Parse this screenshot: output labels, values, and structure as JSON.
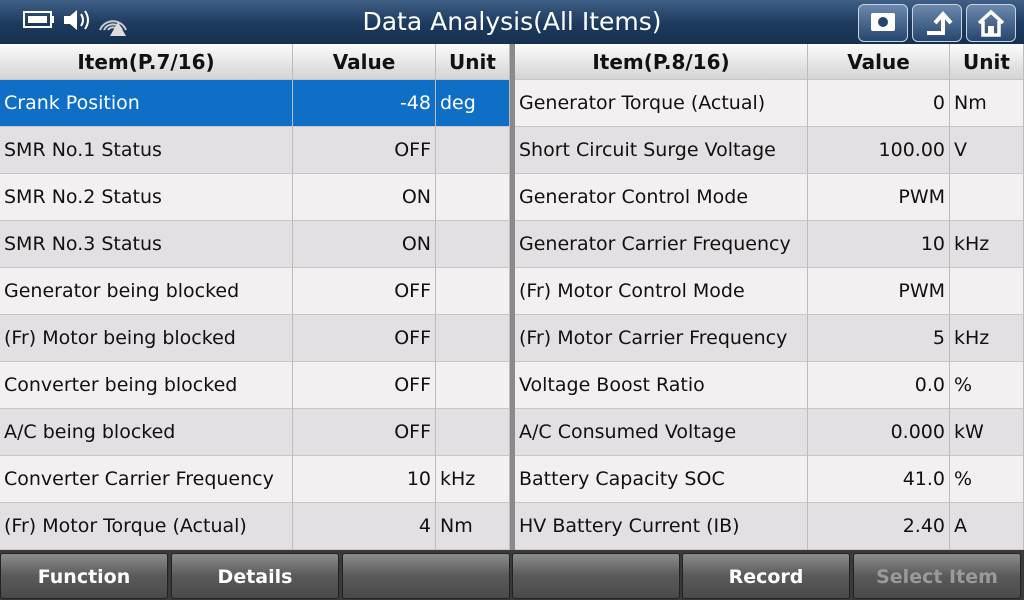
{
  "header": {
    "title": "Data Analysis(All Items)"
  },
  "tables": [
    {
      "headers": [
        "Item(P.7/16)",
        "Value",
        "Unit"
      ],
      "rows": [
        {
          "item": "Crank Position",
          "value": "-48",
          "unit": "deg"
        },
        {
          "item": "SMR No.1 Status",
          "value": "OFF"
        },
        {
          "item": "SMR No.2 Status",
          "value": "ON"
        },
        {
          "item": "SMR No.3 Status",
          "value": "ON"
        },
        {
          "item": "Generator being blocked",
          "value": "OFF"
        },
        {
          "item": "(Fr) Motor being blocked",
          "value": "OFF"
        },
        {
          "item": "Converter being blocked",
          "value": "OFF"
        },
        {
          "item": "A/C being blocked",
          "value": "OFF"
        },
        {
          "item": "Converter Carrier Frequency",
          "value": "10",
          "unit": "kHz"
        },
        {
          "item": "(Fr) Motor Torque (Actual)",
          "value": "4",
          "unit": "Nm"
        }
      ]
    },
    {
      "headers": [
        "Item(P.8/16)",
        "Value",
        "Unit"
      ],
      "rows": [
        {
          "item": "Generator Torque (Actual)",
          "value": "0",
          "unit": "Nm"
        },
        {
          "item": "Short Circuit Surge Voltage",
          "value": "100.00",
          "unit": "V"
        },
        {
          "item": "Generator Control Mode",
          "value": "PWM"
        },
        {
          "item": "Generator Carrier Frequency",
          "value": "10",
          "unit": "kHz"
        },
        {
          "item": "(Fr) Motor Control Mode",
          "value": "PWM"
        },
        {
          "item": "(Fr) Motor Carrier Frequency",
          "value": "5",
          "unit": "kHz"
        },
        {
          "item": "Voltage Boost Ratio",
          "value": "0.0",
          "unit": "%"
        },
        {
          "item": "A/C Consumed Voltage",
          "value": "0.000",
          "unit": "kW"
        },
        {
          "item": "Battery Capacity SOC",
          "value": "41.0",
          "unit": "%"
        },
        {
          "item": "HV Battery Current (IB)",
          "value": "2.40",
          "unit": "A"
        }
      ]
    }
  ],
  "footer": {
    "function": "Function",
    "details": "Details",
    "record": "Record",
    "select_item": "Select Item"
  }
}
